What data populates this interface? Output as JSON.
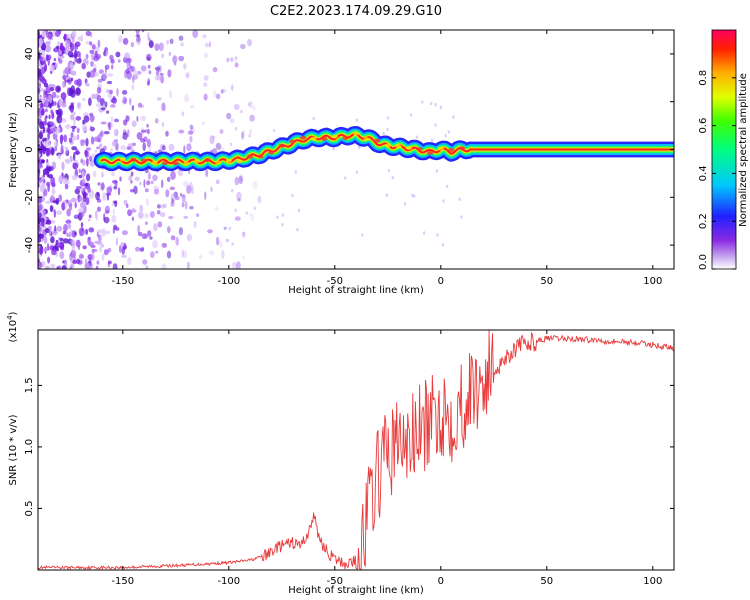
{
  "title": "C2E2.2023.174.09.29.G10",
  "chart_data": [
    {
      "type": "heatmap",
      "xlabel": "Height of straight line (km)",
      "ylabel": "Frequency (Hz)",
      "xlim": [
        -190,
        110
      ],
      "ylim": [
        -50,
        50
      ],
      "xticks": [
        -150,
        -100,
        -50,
        0,
        50,
        100
      ],
      "yticks": [
        -40,
        -20,
        0,
        20,
        40
      ],
      "ridge": {
        "x": [
          -160,
          -140,
          -120,
          -105,
          -95,
          -85,
          -75,
          -65,
          -58,
          -50,
          -42,
          -35,
          -28,
          -20,
          -12,
          -5,
          0,
          5,
          10,
          15,
          110
        ],
        "y": [
          -5,
          -5,
          -5,
          -5,
          -4,
          -2,
          1,
          4,
          5,
          5,
          6,
          5,
          2,
          1,
          0,
          -1,
          0,
          -1,
          0,
          0,
          0
        ]
      },
      "colorbar": {
        "label": "Normalized spectral amplitude",
        "range": [
          0,
          1
        ],
        "ticks": [
          0.0,
          0.2,
          0.4,
          0.6,
          0.8
        ]
      },
      "grid": false
    },
    {
      "type": "line",
      "xlabel": "Height of straight line (km)",
      "ylabel": "SNR (10 * v/v)",
      "yscale_label": "(x10",
      "yscale_exp": "4",
      "yscale_close": ")",
      "xlim": [
        -190,
        110
      ],
      "ylim": [
        0,
        1.95
      ],
      "xticks": [
        -150,
        -100,
        -50,
        0,
        50,
        100
      ],
      "yticks": [
        0.5,
        1.0,
        1.5
      ],
      "ytick_labels": [
        "0.5",
        "1.0",
        "1.5"
      ],
      "series": [
        {
          "color": "#e83a3a",
          "x": [
            -190,
            -150,
            -120,
            -100,
            -90,
            -82,
            -78,
            -74,
            -70,
            -66,
            -62,
            -60,
            -58,
            -55,
            -50,
            -45,
            -40,
            -36,
            -33,
            -30,
            -27,
            -24,
            -20,
            -16,
            -12,
            -8,
            -4,
            0,
            5,
            10,
            15,
            20,
            25,
            30,
            35,
            40,
            50,
            60,
            70,
            80,
            90,
            100,
            110
          ],
          "y": [
            0.02,
            0.02,
            0.04,
            0.06,
            0.08,
            0.12,
            0.18,
            0.2,
            0.22,
            0.2,
            0.32,
            0.45,
            0.3,
            0.18,
            0.08,
            0.05,
            0.08,
            0.3,
            0.6,
            0.75,
            0.9,
            0.95,
            1.05,
            1.0,
            1.1,
            1.15,
            1.2,
            1.3,
            1.25,
            1.35,
            1.45,
            1.55,
            1.62,
            1.72,
            1.8,
            1.84,
            1.88,
            1.88,
            1.87,
            1.86,
            1.85,
            1.83,
            1.8
          ]
        }
      ],
      "grid": false
    }
  ]
}
